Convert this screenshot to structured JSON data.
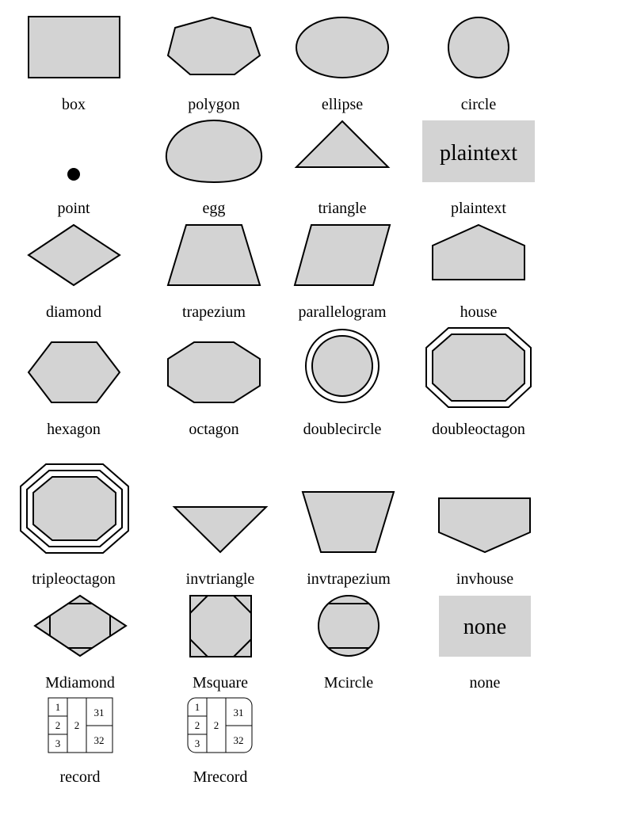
{
  "shapes": [
    {
      "key": "box",
      "label": "box"
    },
    {
      "key": "polygon",
      "label": "polygon"
    },
    {
      "key": "ellipse",
      "label": "ellipse"
    },
    {
      "key": "circle",
      "label": "circle"
    },
    {
      "key": "point",
      "label": "point"
    },
    {
      "key": "egg",
      "label": "egg"
    },
    {
      "key": "triangle",
      "label": "triangle"
    },
    {
      "key": "plaintext",
      "label": "plaintext",
      "inner_text": "plaintext"
    },
    {
      "key": "diamond",
      "label": "diamond"
    },
    {
      "key": "trapezium",
      "label": "trapezium"
    },
    {
      "key": "parallelogram",
      "label": "parallelogram"
    },
    {
      "key": "house",
      "label": "house"
    },
    {
      "key": "hexagon",
      "label": "hexagon"
    },
    {
      "key": "octagon",
      "label": "octagon"
    },
    {
      "key": "doublecircle",
      "label": "doublecircle"
    },
    {
      "key": "doubleoctagon",
      "label": "doubleoctagon"
    },
    {
      "key": "tripleoctagon",
      "label": "tripleoctagon"
    },
    {
      "key": "invtriangle",
      "label": "invtriangle"
    },
    {
      "key": "invtrapezium",
      "label": "invtrapezium"
    },
    {
      "key": "invhouse",
      "label": "invhouse"
    },
    {
      "key": "Mdiamond",
      "label": "Mdiamond"
    },
    {
      "key": "Msquare",
      "label": "Msquare"
    },
    {
      "key": "Mcircle",
      "label": "Mcircle"
    },
    {
      "key": "none",
      "label": "none",
      "inner_text": "none"
    },
    {
      "key": "record",
      "label": "record",
      "cells": [
        "1",
        "2",
        "3",
        "2",
        "31",
        "32"
      ]
    },
    {
      "key": "Mrecord",
      "label": "Mrecord",
      "cells": [
        "1",
        "2",
        "3",
        "2",
        "31",
        "32"
      ]
    }
  ],
  "colors": {
    "fill": "#d3d3d3",
    "stroke": "#000000",
    "background": "#ffffff"
  }
}
